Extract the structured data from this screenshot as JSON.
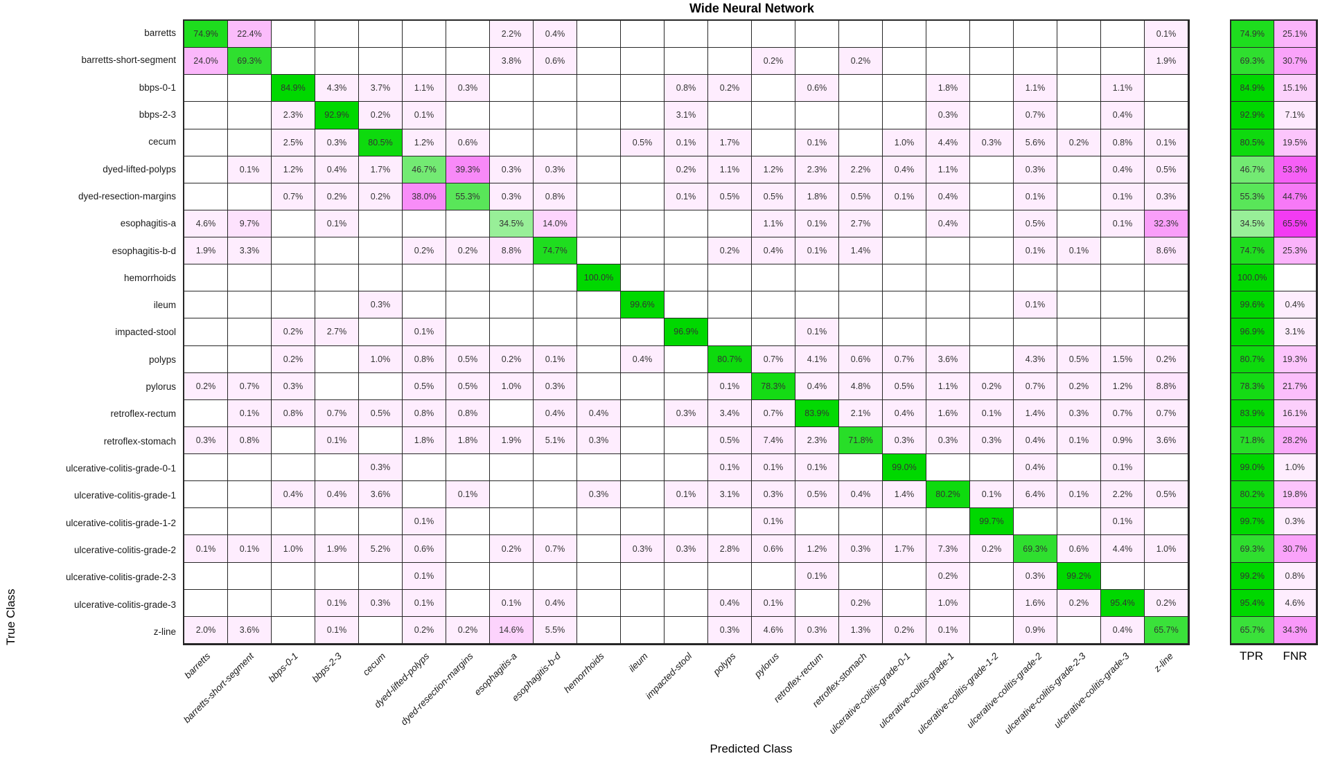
{
  "title": "Wide Neural Network",
  "axes": {
    "x_label": "Predicted Class",
    "y_label": "True Class"
  },
  "summary": {
    "tpr_header": "TPR",
    "fnr_header": "FNR"
  },
  "chart_data": {
    "type": "heatmap",
    "subtype": "confusion-matrix",
    "unit": "%",
    "grid": "on",
    "legend_position": "right-summary-columns",
    "colors": {
      "diagonal_full": "#00d800",
      "off_diagonal_full": "#f000f0",
      "empty_cell": "#ffffff",
      "grid_line": "#262626",
      "value_text": "#333333"
    },
    "classes": [
      "barretts",
      "barretts-short-segment",
      "bbps-0-1",
      "bbps-2-3",
      "cecum",
      "dyed-lifted-polyps",
      "dyed-resection-margins",
      "esophagitis-a",
      "esophagitis-b-d",
      "hemorrhoids",
      "ileum",
      "impacted-stool",
      "polyps",
      "pylorus",
      "retroflex-rectum",
      "retroflex-stomach",
      "ulcerative-colitis-grade-0-1",
      "ulcerative-colitis-grade-1",
      "ulcerative-colitis-grade-1-2",
      "ulcerative-colitis-grade-2",
      "ulcerative-colitis-grade-2-3",
      "ulcerative-colitis-grade-3",
      "z-line"
    ],
    "matrix": [
      [
        74.9,
        22.4,
        null,
        null,
        null,
        null,
        null,
        2.2,
        0.4,
        null,
        null,
        null,
        null,
        null,
        null,
        null,
        null,
        null,
        null,
        null,
        null,
        null,
        0.1
      ],
      [
        24.0,
        69.3,
        null,
        null,
        null,
        null,
        null,
        3.8,
        0.6,
        null,
        null,
        null,
        null,
        0.2,
        null,
        0.2,
        null,
        null,
        null,
        null,
        null,
        null,
        1.9
      ],
      [
        null,
        null,
        84.9,
        4.3,
        3.7,
        1.1,
        0.3,
        null,
        null,
        null,
        null,
        0.8,
        0.2,
        null,
        0.6,
        null,
        null,
        1.8,
        null,
        1.1,
        null,
        1.1,
        null
      ],
      [
        null,
        null,
        2.3,
        92.9,
        0.2,
        0.1,
        null,
        null,
        null,
        null,
        null,
        3.1,
        null,
        null,
        null,
        null,
        null,
        0.3,
        null,
        0.7,
        null,
        0.4,
        null
      ],
      [
        null,
        null,
        2.5,
        0.3,
        80.5,
        1.2,
        0.6,
        null,
        null,
        null,
        0.5,
        0.1,
        1.7,
        null,
        0.1,
        null,
        1.0,
        4.4,
        0.3,
        5.6,
        0.2,
        0.8,
        0.1
      ],
      [
        null,
        0.1,
        1.2,
        0.4,
        1.7,
        46.7,
        39.3,
        0.3,
        0.3,
        null,
        null,
        0.2,
        1.1,
        1.2,
        2.3,
        2.2,
        0.4,
        1.1,
        null,
        0.3,
        null,
        0.4,
        0.5
      ],
      [
        null,
        null,
        0.7,
        0.2,
        0.2,
        38.0,
        55.3,
        0.3,
        0.8,
        null,
        null,
        0.1,
        0.5,
        0.5,
        1.8,
        0.5,
        0.1,
        0.4,
        null,
        0.1,
        null,
        0.1,
        0.3
      ],
      [
        4.6,
        9.7,
        null,
        0.1,
        null,
        null,
        null,
        34.5,
        14.0,
        null,
        null,
        null,
        null,
        1.1,
        0.1,
        2.7,
        null,
        0.4,
        null,
        0.5,
        null,
        0.1,
        32.3
      ],
      [
        1.9,
        3.3,
        null,
        null,
        null,
        0.2,
        0.2,
        8.8,
        74.7,
        null,
        null,
        null,
        0.2,
        0.4,
        0.1,
        1.4,
        null,
        null,
        null,
        0.1,
        0.1,
        null,
        8.6
      ],
      [
        null,
        null,
        null,
        null,
        null,
        null,
        null,
        null,
        null,
        100.0,
        null,
        null,
        null,
        null,
        null,
        null,
        null,
        null,
        null,
        null,
        null,
        null,
        null
      ],
      [
        null,
        null,
        null,
        null,
        0.3,
        null,
        null,
        null,
        null,
        null,
        99.6,
        null,
        null,
        null,
        null,
        null,
        null,
        null,
        null,
        0.1,
        null,
        null,
        null
      ],
      [
        null,
        null,
        0.2,
        2.7,
        null,
        0.1,
        null,
        null,
        null,
        null,
        null,
        96.9,
        null,
        null,
        0.1,
        null,
        null,
        null,
        null,
        null,
        null,
        null,
        null
      ],
      [
        null,
        null,
        0.2,
        null,
        1.0,
        0.8,
        0.5,
        0.2,
        0.1,
        null,
        0.4,
        null,
        80.7,
        0.7,
        4.1,
        0.6,
        0.7,
        3.6,
        null,
        4.3,
        0.5,
        1.5,
        0.2
      ],
      [
        0.2,
        0.7,
        0.3,
        null,
        null,
        0.5,
        0.5,
        1.0,
        0.3,
        null,
        null,
        null,
        0.1,
        78.3,
        0.4,
        4.8,
        0.5,
        1.1,
        0.2,
        0.7,
        0.2,
        1.2,
        8.8
      ],
      [
        null,
        0.1,
        0.8,
        0.7,
        0.5,
        0.8,
        0.8,
        null,
        0.4,
        0.4,
        null,
        0.3,
        3.4,
        0.7,
        83.9,
        2.1,
        0.4,
        1.6,
        0.1,
        1.4,
        0.3,
        0.7,
        0.7
      ],
      [
        0.3,
        0.8,
        null,
        0.1,
        null,
        1.8,
        1.8,
        1.9,
        5.1,
        0.3,
        null,
        null,
        0.5,
        7.4,
        2.3,
        71.8,
        0.3,
        0.3,
        0.3,
        0.4,
        0.1,
        0.9,
        3.6
      ],
      [
        null,
        null,
        null,
        null,
        0.3,
        null,
        null,
        null,
        null,
        null,
        null,
        null,
        0.1,
        0.1,
        0.1,
        null,
        99.0,
        null,
        null,
        0.4,
        null,
        0.1,
        null
      ],
      [
        null,
        null,
        0.4,
        0.4,
        3.6,
        null,
        0.1,
        null,
        null,
        0.3,
        null,
        0.1,
        3.1,
        0.3,
        0.5,
        0.4,
        1.4,
        80.2,
        0.1,
        6.4,
        0.1,
        2.2,
        0.5
      ],
      [
        null,
        null,
        null,
        null,
        null,
        0.1,
        null,
        null,
        null,
        null,
        null,
        null,
        null,
        0.1,
        null,
        null,
        null,
        null,
        99.7,
        null,
        null,
        0.1,
        null
      ],
      [
        0.1,
        0.1,
        1.0,
        1.9,
        5.2,
        0.6,
        null,
        0.2,
        0.7,
        null,
        0.3,
        0.3,
        2.8,
        0.6,
        1.2,
        0.3,
        1.7,
        7.3,
        0.2,
        69.3,
        0.6,
        4.4,
        1.0
      ],
      [
        null,
        null,
        null,
        null,
        null,
        0.1,
        null,
        null,
        null,
        null,
        null,
        null,
        null,
        null,
        0.1,
        null,
        null,
        0.2,
        null,
        0.3,
        99.2,
        null,
        null
      ],
      [
        null,
        null,
        null,
        0.1,
        0.3,
        0.1,
        null,
        0.1,
        0.4,
        null,
        null,
        null,
        0.4,
        0.1,
        null,
        0.2,
        null,
        1.0,
        null,
        1.6,
        0.2,
        95.4,
        0.2
      ],
      [
        2.0,
        3.6,
        null,
        0.1,
        null,
        0.2,
        0.2,
        14.6,
        5.5,
        null,
        null,
        null,
        0.3,
        4.6,
        0.3,
        1.3,
        0.2,
        0.1,
        null,
        0.9,
        null,
        0.4,
        65.7
      ]
    ],
    "tpr": [
      74.9,
      69.3,
      84.9,
      92.9,
      80.5,
      46.7,
      55.3,
      34.5,
      74.7,
      100.0,
      99.6,
      96.9,
      80.7,
      78.3,
      83.9,
      71.8,
      99.0,
      80.2,
      99.7,
      69.3,
      99.2,
      95.4,
      65.7
    ],
    "fnr": [
      25.1,
      30.7,
      15.1,
      7.1,
      19.5,
      53.3,
      44.7,
      65.5,
      25.3,
      null,
      0.4,
      3.1,
      19.3,
      21.7,
      16.1,
      28.2,
      1.0,
      19.8,
      0.3,
      30.7,
      0.8,
      4.6,
      34.3
    ]
  }
}
